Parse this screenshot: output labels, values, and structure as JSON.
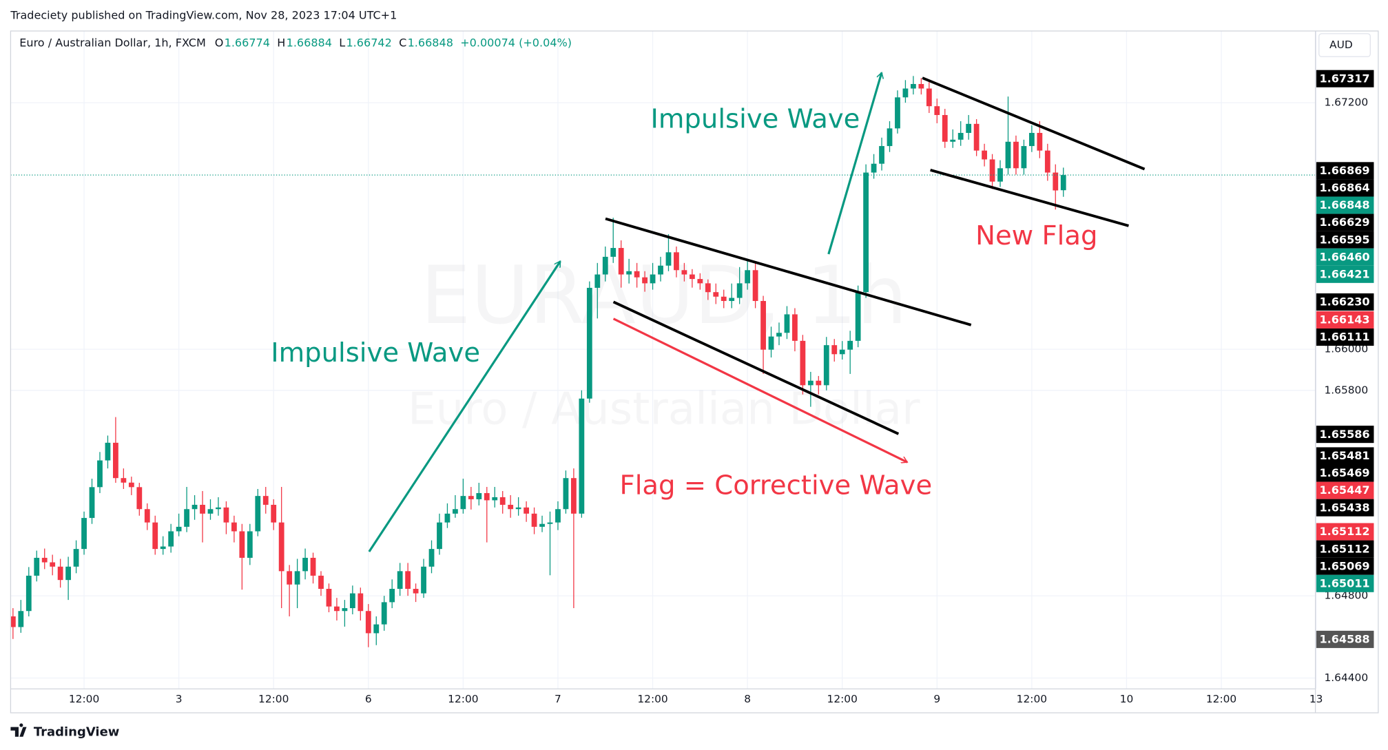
{
  "header": {
    "published": "Tradeciety published on TradingView.com, Nov 28, 2023 17:04 UTC+1",
    "symbol": "Euro / Australian Dollar, 1h, FXCM",
    "o": "O",
    "h": "H",
    "l": "L",
    "c": "C",
    "change": "+0.00074 (+0.04%)"
  },
  "currency": "AUD",
  "footer": "TradingView",
  "chart_data": {
    "type": "candlestick",
    "x": [
      3,
      4,
      5,
      6,
      7,
      8,
      9,
      10,
      11,
      12,
      13,
      14,
      15,
      16,
      17,
      18,
      19,
      20,
      21,
      22,
      23,
      24,
      25,
      26,
      27,
      28,
      29,
      30,
      31,
      32,
      33,
      34,
      35,
      36,
      37,
      38,
      39,
      40,
      41,
      42,
      43,
      44,
      45,
      46,
      47,
      48,
      49,
      50,
      51,
      52,
      53,
      54,
      55,
      56,
      57,
      58,
      59,
      60,
      61,
      62,
      63,
      64,
      65,
      66,
      67,
      68,
      69,
      70,
      71,
      72,
      73,
      74,
      75,
      76,
      77,
      78,
      79,
      80,
      81,
      82,
      83,
      84,
      85,
      86,
      87,
      88,
      89,
      90,
      91,
      92,
      93,
      94,
      95,
      96,
      97,
      98,
      99,
      100,
      101,
      102,
      103,
      104,
      105,
      106,
      107,
      108,
      109,
      110,
      111,
      112,
      113,
      114,
      115,
      116,
      117,
      118,
      119,
      120,
      121,
      122,
      123,
      124,
      125,
      126,
      127,
      128,
      129,
      130,
      131,
      132,
      133,
      134,
      135,
      136
    ],
    "open": [
      1.647,
      1.64648,
      1.64726,
      1.64898,
      1.64985,
      1.64963,
      1.64942,
      1.64877,
      1.64942,
      1.65028,
      1.65179,
      1.65329,
      1.65459,
      1.65545,
      1.65373,
      1.65351,
      1.65329,
      1.65222,
      1.65157,
      1.65028,
      1.6504,
      1.65114,
      1.65136,
      1.65222,
      1.65243,
      1.652,
      1.65222,
      1.6523,
      1.65157,
      1.65114,
      1.64985,
      1.65114,
      1.65286,
      1.65243,
      1.65157,
      1.6492,
      1.64855,
      1.6492,
      1.64985,
      1.64898,
      1.64834,
      1.64748,
      1.64726,
      1.6474,
      1.64812,
      1.64726,
      1.64618,
      1.64661,
      1.64769,
      1.64834,
      1.6492,
      1.64834,
      1.64812,
      1.64942,
      1.65028,
      1.65157,
      1.652,
      1.65222,
      1.65286,
      1.6527,
      1.653,
      1.65265,
      1.6528,
      1.65243,
      1.65222,
      1.6523,
      1.652,
      1.65136,
      1.6515,
      1.65157,
      1.65222,
      1.65373,
      1.652,
      1.6576,
      1.66299,
      1.66364,
      1.6645,
      1.66493,
      1.66364,
      1.6638,
      1.6635,
      1.66321,
      1.66364,
      1.66407,
      1.66472,
      1.66385,
      1.66364,
      1.66342,
      1.66321,
      1.66278,
      1.66256,
      1.66235,
      1.6625,
      1.66321,
      1.66385,
      1.66235,
      1.65998,
      1.66062,
      1.6608,
      1.6617,
      1.66041,
      1.65825,
      1.65847,
      1.65825,
      1.6602,
      1.65976,
      1.65998,
      1.66041,
      1.66278,
      1.6686,
      1.66903,
      1.66989,
      1.67075,
      1.67226,
      1.67269,
      1.67291,
      1.67269,
      1.67183,
      1.6714,
      1.6701,
      1.6702,
      1.67053,
      1.67097,
      1.66967,
      1.66924,
      1.66816,
      1.66881,
      1.6701,
      1.66881,
      1.66989,
      1.67053,
      1.66967,
      1.6686,
      1.66774
    ],
    "high": [
      1.6474,
      1.6478,
      1.6494,
      1.6502,
      1.6503,
      1.65,
      1.6498,
      1.6499,
      1.6507,
      1.6521,
      1.6537,
      1.655,
      1.6558,
      1.6567,
      1.6542,
      1.6538,
      1.6535,
      1.6525,
      1.6519,
      1.6509,
      1.6515,
      1.652,
      1.6533,
      1.6529,
      1.6531,
      1.6527,
      1.6528,
      1.6526,
      1.6519,
      1.6515,
      1.6515,
      1.6532,
      1.6533,
      1.6527,
      1.6533,
      1.6495,
      1.6498,
      1.6503,
      1.6501,
      1.6492,
      1.6486,
      1.6479,
      1.6478,
      1.6485,
      1.6484,
      1.6476,
      1.647,
      1.648,
      1.6488,
      1.6496,
      1.6496,
      1.6486,
      1.6498,
      1.6507,
      1.652,
      1.6525,
      1.6529,
      1.6537,
      1.6533,
      1.6535,
      1.6533,
      1.6533,
      1.6531,
      1.6529,
      1.6528,
      1.6526,
      1.6523,
      1.6519,
      1.6521,
      1.6526,
      1.6541,
      1.6542,
      1.658,
      1.6633,
      1.6642,
      1.665,
      1.6664,
      1.6653,
      1.6644,
      1.6642,
      1.6638,
      1.6642,
      1.6645,
      1.6656,
      1.665,
      1.6642,
      1.6639,
      1.6637,
      1.6634,
      1.6632,
      1.6629,
      1.6632,
      1.664,
      1.6643,
      1.6642,
      1.6626,
      1.6611,
      1.6613,
      1.6621,
      1.662,
      1.6607,
      1.6589,
      1.6587,
      1.6606,
      1.6605,
      1.6604,
      1.6609,
      1.6631,
      1.669,
      1.6695,
      1.6703,
      1.6711,
      1.6726,
      1.6731,
      1.6733,
      1.6732,
      1.673,
      1.6722,
      1.6717,
      1.6707,
      1.6711,
      1.6714,
      1.6712,
      1.67,
      1.6695,
      1.6692,
      1.6723,
      1.6704,
      1.6702,
      1.6709,
      1.6711,
      1.67,
      1.669,
      1.66884
    ],
    "low": [
      1.6459,
      1.6462,
      1.647,
      1.6487,
      1.6493,
      1.649,
      1.6484,
      1.6478,
      1.6491,
      1.65,
      1.6515,
      1.653,
      1.6542,
      1.6535,
      1.6532,
      1.6529,
      1.6519,
      1.6512,
      1.65,
      1.65,
      1.6501,
      1.6509,
      1.6511,
      1.6517,
      1.6506,
      1.6517,
      1.6519,
      1.651,
      1.6506,
      1.6483,
      1.6495,
      1.6509,
      1.652,
      1.6512,
      1.6474,
      1.647,
      1.6474,
      1.6488,
      1.6486,
      1.648,
      1.6472,
      1.6468,
      1.6465,
      1.6471,
      1.6468,
      1.6455,
      1.6456,
      1.6463,
      1.6474,
      1.648,
      1.648,
      1.6477,
      1.6479,
      1.6491,
      1.65,
      1.6513,
      1.6518,
      1.652,
      1.6522,
      1.6524,
      1.6506,
      1.6523,
      1.652,
      1.6518,
      1.6519,
      1.6516,
      1.651,
      1.6511,
      1.649,
      1.6512,
      1.652,
      1.6474,
      1.6518,
      1.6574,
      1.6615,
      1.6633,
      1.6642,
      1.663,
      1.6632,
      1.663,
      1.6628,
      1.6629,
      1.6633,
      1.6638,
      1.6635,
      1.6633,
      1.663,
      1.6629,
      1.6624,
      1.6622,
      1.662,
      1.662,
      1.6622,
      1.6629,
      1.662,
      1.6588,
      1.6596,
      1.6602,
      1.6605,
      1.6599,
      1.6578,
      1.6572,
      1.6578,
      1.658,
      1.6594,
      1.6595,
      1.6588,
      1.6601,
      1.6625,
      1.6683,
      1.6687,
      1.6696,
      1.6705,
      1.672,
      1.6724,
      1.6724,
      1.6715,
      1.671,
      1.6698,
      1.6698,
      1.6699,
      1.6702,
      1.6694,
      1.6689,
      1.6678,
      1.6679,
      1.6685,
      1.6685,
      1.6685,
      1.6696,
      1.6693,
      1.6682,
      1.6668,
      1.66742
    ],
    "close": [
      1.64648,
      1.64726,
      1.64898,
      1.64985,
      1.64963,
      1.64942,
      1.64877,
      1.64942,
      1.65028,
      1.65179,
      1.65329,
      1.65459,
      1.65545,
      1.65373,
      1.65351,
      1.65329,
      1.65222,
      1.65157,
      1.65028,
      1.6504,
      1.65114,
      1.65136,
      1.65222,
      1.65243,
      1.652,
      1.65222,
      1.6523,
      1.65157,
      1.65114,
      1.64985,
      1.65114,
      1.65286,
      1.65243,
      1.65157,
      1.6492,
      1.64855,
      1.6492,
      1.64985,
      1.64898,
      1.64834,
      1.64748,
      1.64726,
      1.6474,
      1.64812,
      1.64726,
      1.64618,
      1.64661,
      1.64769,
      1.64834,
      1.6492,
      1.64834,
      1.64812,
      1.64942,
      1.65028,
      1.65157,
      1.652,
      1.65222,
      1.65286,
      1.6527,
      1.653,
      1.65265,
      1.6528,
      1.65243,
      1.65222,
      1.6523,
      1.652,
      1.65136,
      1.6515,
      1.65157,
      1.65222,
      1.65373,
      1.652,
      1.6576,
      1.66299,
      1.66364,
      1.6645,
      1.66493,
      1.66364,
      1.6638,
      1.6635,
      1.66321,
      1.66364,
      1.66407,
      1.66472,
      1.66385,
      1.66364,
      1.66342,
      1.66321,
      1.66278,
      1.66256,
      1.66235,
      1.6625,
      1.66321,
      1.66385,
      1.66235,
      1.65998,
      1.66062,
      1.6608,
      1.6617,
      1.66041,
      1.65825,
      1.65847,
      1.65825,
      1.6602,
      1.65976,
      1.65998,
      1.66041,
      1.66278,
      1.6686,
      1.66903,
      1.66989,
      1.67075,
      1.67226,
      1.67269,
      1.67291,
      1.67269,
      1.67183,
      1.6714,
      1.6701,
      1.6702,
      1.67053,
      1.67097,
      1.66967,
      1.66924,
      1.66816,
      1.66881,
      1.6701,
      1.66881,
      1.66989,
      1.67053,
      1.66967,
      1.6686,
      1.66773,
      1.66848
    ],
    "up_color": "#089981",
    "down_color": "#f23645",
    "xlim": [
      2.7,
      167.8
    ],
    "xticks": [
      {
        "value": 12,
        "label": "12:00"
      },
      {
        "value": 24,
        "label": "3"
      },
      {
        "value": 36,
        "label": "12:00"
      },
      {
        "value": 48,
        "label": "6"
      },
      {
        "value": 60,
        "label": "12:00"
      },
      {
        "value": 72,
        "label": "7"
      },
      {
        "value": 84,
        "label": "12:00"
      },
      {
        "value": 96,
        "label": "8"
      },
      {
        "value": 108,
        "label": "12:00"
      },
      {
        "value": 120,
        "label": "9"
      },
      {
        "value": 132,
        "label": "12:00"
      },
      {
        "value": 144,
        "label": "10"
      },
      {
        "value": 156,
        "label": "12:00"
      },
      {
        "value": 168,
        "label": "13"
      }
    ],
    "ylim": [
      1.64347,
      1.67549
    ],
    "yticks": [
      {
        "value": 1.644,
        "label": "1.64400"
      },
      {
        "value": 1.648,
        "label": "1.64800"
      },
      {
        "value": 1.658,
        "label": "1.65800"
      },
      {
        "value": 1.66,
        "label": "1.66000"
      },
      {
        "value": 1.672,
        "label": "1.67200"
      }
    ],
    "grid": true,
    "watermark": [
      "EURAUD, 1h",
      "Euro / Australian Dollar"
    ],
    "price_labels": [
      {
        "value": 1.67317,
        "label": "1.67317",
        "color": "#000000"
      },
      {
        "value": 1.66869,
        "label": "1.66869",
        "color": "#000000"
      },
      {
        "value": 1.66864,
        "label": "1.66864",
        "color": "#000000"
      },
      {
        "value": 1.66848,
        "label": "1.66848",
        "color": "#089981"
      },
      {
        "value": 1.66629,
        "label": "1.66629",
        "color": "#000000"
      },
      {
        "value": 1.66595,
        "label": "1.66595",
        "color": "#000000"
      },
      {
        "value": 1.6646,
        "label": "1.66460",
        "color": "#089981"
      },
      {
        "value": 1.66421,
        "label": "1.66421",
        "color": "#089981"
      },
      {
        "value": 1.6623,
        "label": "1.66230",
        "color": "#000000"
      },
      {
        "value": 1.66143,
        "label": "1.66143",
        "color": "#f23645"
      },
      {
        "value": 1.66111,
        "label": "1.66111",
        "color": "#000000"
      },
      {
        "value": 1.65586,
        "label": "1.65586",
        "color": "#000000"
      },
      {
        "value": 1.65481,
        "label": "1.65481",
        "color": "#000000"
      },
      {
        "value": 1.65469,
        "label": "1.65469",
        "color": "#000000"
      },
      {
        "value": 1.65447,
        "label": "1.65447",
        "color": "#f23645"
      },
      {
        "value": 1.65438,
        "label": "1.65438",
        "color": "#000000"
      },
      {
        "value": 1.65112,
        "label": "1.65112",
        "color": "#f23645"
      },
      {
        "value": 1.65112,
        "label": "1.65112",
        "color": "#000000"
      },
      {
        "value": 1.65069,
        "label": "1.65069",
        "color": "#000000"
      },
      {
        "value": 1.65011,
        "label": "1.65011",
        "color": "#089981"
      },
      {
        "value": 1.64588,
        "label": "1.64588",
        "color": "#555555"
      }
    ],
    "annotations": [
      {
        "text": "Impulsive Wave",
        "color": "#089981"
      },
      {
        "text": "Impulsive Wave",
        "color": "#089981"
      },
      {
        "text": "Flag = Corrective Wave",
        "color": "#f23645"
      },
      {
        "text": "New Flag",
        "color": "#f23645"
      }
    ]
  }
}
